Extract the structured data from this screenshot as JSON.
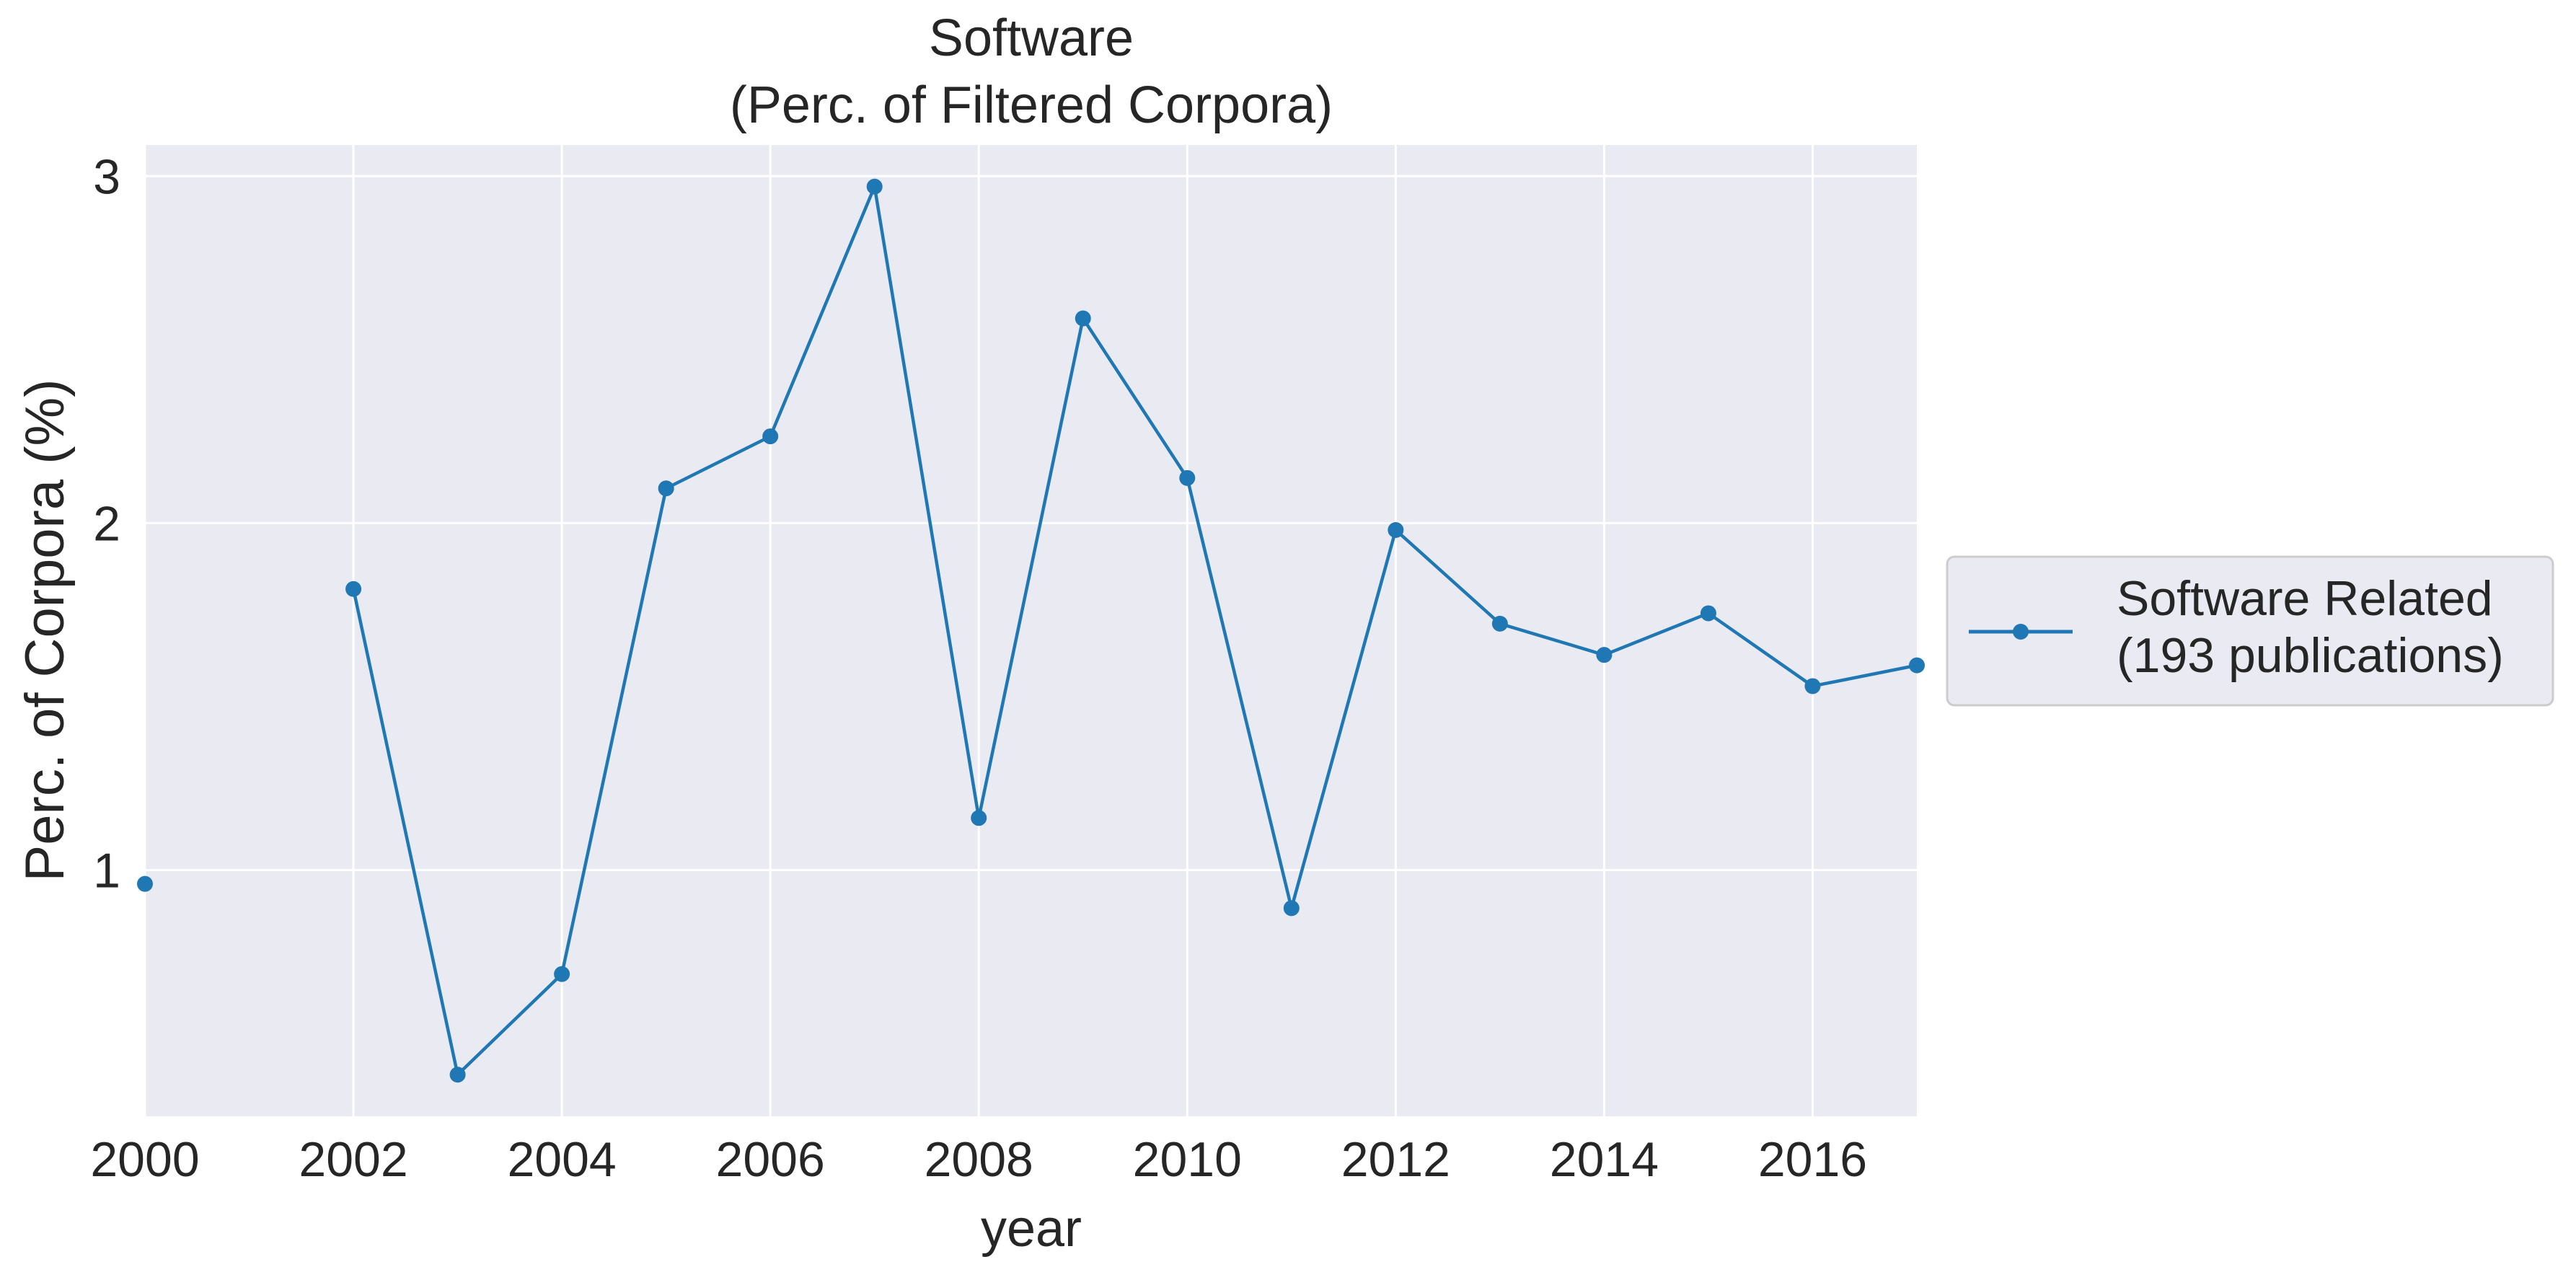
{
  "chart_data": {
    "type": "line",
    "title_line1": "Software",
    "title_line2": "(Perc. of Filtered Corpora)",
    "xlabel": "year",
    "ylabel": "Perc. of Corpora (%)",
    "xlim": [
      2000,
      2017
    ],
    "ylim": [
      0.29,
      3.09
    ],
    "xticks": [
      2000,
      2002,
      2004,
      2006,
      2008,
      2010,
      2012,
      2014,
      2016
    ],
    "yticks": [
      1,
      2,
      3
    ],
    "grid": true,
    "legend_position": "center-right outside",
    "series": [
      {
        "name_line1": "Software Related",
        "name_line2": "(193 publications)",
        "color": "#1f77b4",
        "segments": [
          [
            [
              2000,
              0.96
            ]
          ],
          [
            [
              2002,
              1.81
            ],
            [
              2003,
              0.41
            ],
            [
              2004,
              0.7
            ],
            [
              2005,
              2.1
            ],
            [
              2006,
              2.25
            ],
            [
              2007,
              2.97
            ],
            [
              2008,
              1.15
            ],
            [
              2009,
              2.59
            ],
            [
              2010,
              2.13
            ],
            [
              2011,
              0.89
            ],
            [
              2012,
              1.98
            ],
            [
              2013,
              1.71
            ],
            [
              2014,
              1.62
            ],
            [
              2015,
              1.74
            ],
            [
              2016,
              1.53
            ],
            [
              2017,
              1.59
            ]
          ]
        ]
      }
    ]
  }
}
